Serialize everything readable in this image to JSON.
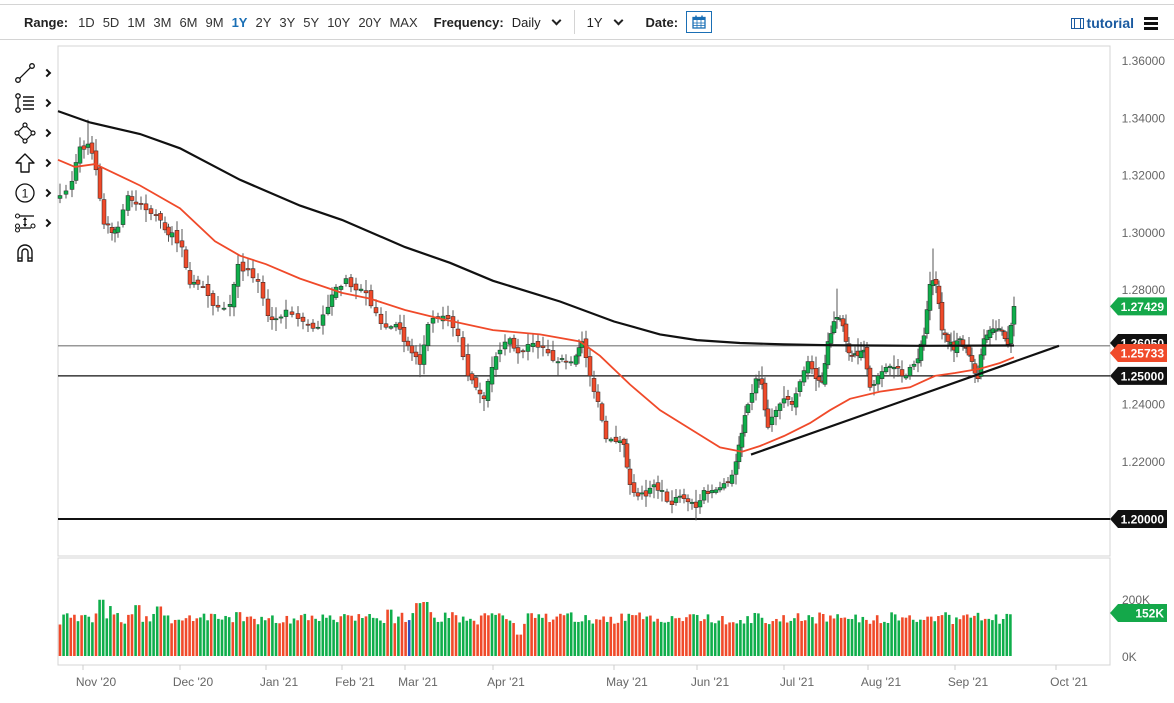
{
  "toolbar": {
    "range_label": "Range:",
    "ranges": [
      "1D",
      "5D",
      "1M",
      "3M",
      "6M",
      "9M",
      "1Y",
      "2Y",
      "3Y",
      "5Y",
      "10Y",
      "20Y",
      "MAX"
    ],
    "active_range": "1Y",
    "frequency_label": "Frequency:",
    "frequency_value": "Daily",
    "period_value": "1Y",
    "date_label": "Date:",
    "tutorial_label": "tutorial"
  },
  "drawing_tools": [
    {
      "name": "trend-line-icon",
      "has_submenu": true
    },
    {
      "name": "fibonacci-icon",
      "has_submenu": true
    },
    {
      "name": "shape-icon",
      "has_submenu": true
    },
    {
      "name": "arrow-up-icon",
      "has_submenu": true
    },
    {
      "name": "annotation-number-icon",
      "has_submenu": true
    },
    {
      "name": "measure-icon",
      "has_submenu": true
    },
    {
      "name": "magnet-icon",
      "has_submenu": false
    }
  ],
  "colors": {
    "up": "#0fae4b",
    "down": "#f04a2a",
    "ma_fast": "#f04a2a",
    "ma_slow": "#111111",
    "last_price_tag": "#14a84a",
    "ma_tag": "#f04a2a",
    "level_tag": "#111111",
    "volume_highlight": "#2f4fc0"
  },
  "chart_data": {
    "type": "candlestick",
    "title": "",
    "frequency": "Daily",
    "range": "1Y",
    "x_ticks": [
      "Nov '20",
      "Dec '20",
      "Jan '21",
      "Feb '21",
      "Mar '21",
      "Apr '21",
      "May '21",
      "Jun '21",
      "Jul '21",
      "Aug '21",
      "Sep '21",
      "Oct '21"
    ],
    "y_ticks": [
      "1.36000",
      "1.34000",
      "1.32000",
      "1.30000",
      "1.28000",
      "1.26000",
      "1.24000",
      "1.22000",
      "1.20000"
    ],
    "ylim": [
      1.195,
      1.365
    ],
    "volume_ticks": [
      "200K",
      "0K"
    ],
    "price_tags": [
      {
        "label": "1.27429",
        "value": 1.27429,
        "kind": "last_price",
        "color": "#14a84a"
      },
      {
        "label": "1.26050",
        "value": 1.2605,
        "kind": "horizontal_level",
        "color": "#111111"
      },
      {
        "label": "1.25733",
        "value": 1.25733,
        "kind": "moving_average_fast",
        "color": "#f04a2a"
      },
      {
        "label": "1.25000",
        "value": 1.25,
        "kind": "horizontal_level",
        "color": "#111111"
      },
      {
        "label": "1.20000",
        "value": 1.2,
        "kind": "horizontal_level",
        "color": "#111111"
      }
    ],
    "volume_tag": {
      "label": "152K",
      "value": 152000
    },
    "horizontal_lines": [
      1.2605,
      1.25,
      1.2
    ],
    "trendline": {
      "from": {
        "date": "Jun '21 mid",
        "price": 1.2225
      },
      "to": {
        "date": "Sep '21 end",
        "price": 1.2605
      }
    },
    "series": [
      {
        "name": "Close (approx.)",
        "type": "candlestick",
        "dates": [
          "Nov '20",
          "Dec '20",
          "Jan '21",
          "Feb '21",
          "Mar '21",
          "Apr '21",
          "May '21",
          "Jun '21",
          "Jul '21",
          "Aug '21",
          "Sep '21",
          "Sep '21 end"
        ],
        "values": [
          1.3305,
          1.308,
          1.285,
          1.284,
          1.262,
          1.262,
          1.227,
          1.207,
          1.256,
          1.256,
          1.262,
          1.2743
        ]
      },
      {
        "name": "Slow MA (black)",
        "type": "line",
        "dates": [
          "Nov '20",
          "Dec '20",
          "Jan '21",
          "Feb '21",
          "Mar '21",
          "Apr '21",
          "May '21",
          "Jun '21",
          "Jul '21",
          "Aug '21",
          "Sep '21",
          "Sep '21 end"
        ],
        "values": [
          1.3385,
          1.326,
          1.3185,
          1.3045,
          1.293,
          1.2832,
          1.2735,
          1.2645,
          1.2612,
          1.2605,
          1.2605,
          1.2605
        ]
      },
      {
        "name": "Fast MA (red)",
        "type": "line",
        "dates": [
          "Nov '20",
          "Dec '20",
          "Jan '21",
          "Feb '21",
          "Mar '21",
          "Apr '21",
          "May '21",
          "Jun '21",
          "Jul '21",
          "Aug '21",
          "Sep '21",
          "Sep '21 end"
        ],
        "values": [
          1.3245,
          1.304,
          1.2855,
          1.278,
          1.272,
          1.2655,
          1.248,
          1.2235,
          1.2365,
          1.2445,
          1.2515,
          1.2573
        ]
      }
    ]
  }
}
